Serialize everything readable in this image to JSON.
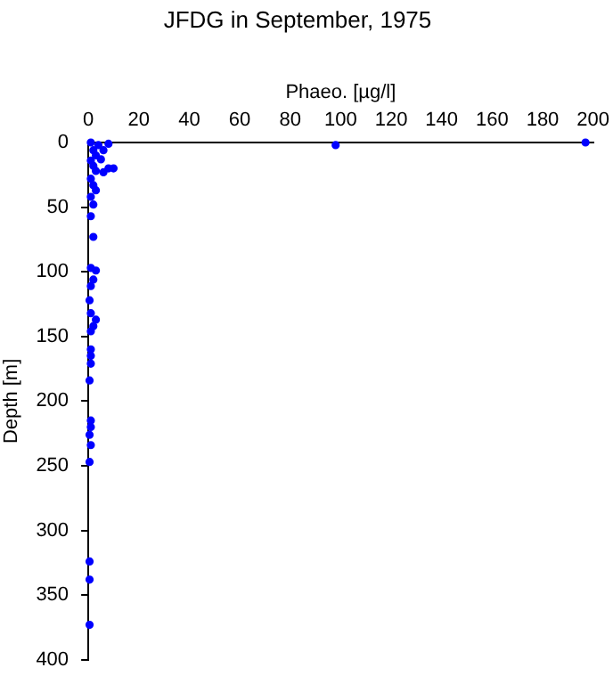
{
  "chart_data": {
    "type": "scatter",
    "title": "JFDG in September, 1975",
    "xlabel": "Phaeo. [µg/l]",
    "ylabel": "Depth [m]",
    "series": [
      {
        "color": "#0000ff",
        "x": [
          1,
          4,
          8,
          2,
          6,
          3,
          1,
          5,
          2,
          8,
          10,
          6,
          3,
          98,
          197,
          1,
          2,
          3,
          1,
          2,
          1,
          2,
          1,
          3,
          2,
          1,
          0.5,
          1,
          3,
          2,
          1,
          1,
          1,
          1,
          0.5,
          1,
          1,
          0.5,
          1,
          0.5,
          0.5,
          0.5,
          0.5
        ],
        "values": [
          0,
          2,
          1,
          6,
          6,
          10,
          14,
          13,
          18,
          20,
          20,
          23,
          22,
          2,
          0,
          28,
          33,
          37,
          42,
          48,
          57,
          73,
          97,
          99,
          106,
          111,
          122,
          132,
          137,
          142,
          146,
          160,
          165,
          171,
          184,
          215,
          220,
          226,
          234,
          247,
          324,
          338,
          373
        ]
      }
    ],
    "xlim": [
      0,
      200
    ],
    "xticks": [
      0,
      20,
      40,
      60,
      80,
      100,
      120,
      140,
      160,
      180,
      200
    ],
    "ylim": [
      400,
      0
    ],
    "yticks": [
      0,
      50,
      100,
      150,
      200,
      250,
      300,
      350,
      400
    ],
    "grid": false,
    "legend": false,
    "marker": "circle"
  }
}
